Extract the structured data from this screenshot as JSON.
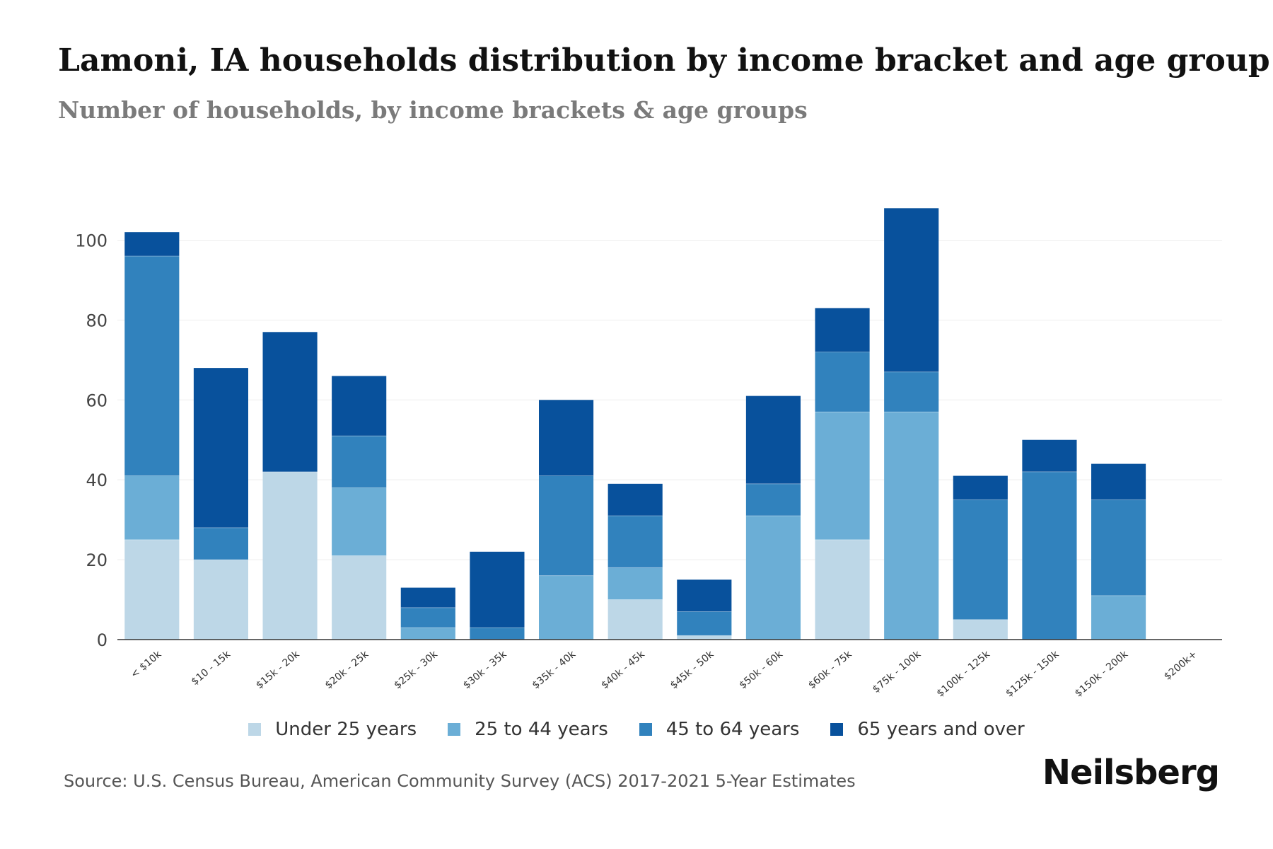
{
  "header": {
    "title": "Lamoni, IA households distribution by income bracket and age group",
    "subtitle": "Number of households, by income brackets & age groups"
  },
  "footer": {
    "source": "Source: U.S. Census Bureau, American Community Survey (ACS) 2017-2021 5-Year Estimates",
    "brand": "Neilsberg"
  },
  "chart_data": {
    "type": "bar",
    "stacked": true,
    "title": "Lamoni, IA households distribution by income bracket and age group",
    "subtitle": "Number of households, by income brackets & age groups",
    "xlabel": "",
    "ylabel": "",
    "ylim": [
      0,
      110
    ],
    "yticks": [
      0,
      20,
      40,
      60,
      80,
      100
    ],
    "grid": true,
    "legend_position": "bottom",
    "categories": [
      "< $10k",
      "$10 - 15k",
      "$15k - 20k",
      "$20k - 25k",
      "$25k - 30k",
      "$30k - 35k",
      "$35k - 40k",
      "$40k - 45k",
      "$45k - 50k",
      "$50k - 60k",
      "$60k - 75k",
      "$75k - 100k",
      "$100k - 125k",
      "$125k - 150k",
      "$150k - 200k",
      "$200k+"
    ],
    "series": [
      {
        "name": "Under 25 years",
        "color": "#bdd7e7",
        "values": [
          25,
          20,
          42,
          21,
          0,
          0,
          0,
          10,
          1,
          0,
          25,
          0,
          5,
          0,
          0,
          0
        ]
      },
      {
        "name": "25 to 44 years",
        "color": "#6baed6",
        "values": [
          16,
          0,
          0,
          17,
          3,
          0,
          16,
          8,
          0,
          31,
          32,
          57,
          0,
          0,
          11,
          0
        ]
      },
      {
        "name": "45 to 64 years",
        "color": "#3182bd",
        "values": [
          55,
          8,
          0,
          13,
          5,
          3,
          25,
          13,
          6,
          8,
          15,
          10,
          30,
          42,
          24,
          0
        ]
      },
      {
        "name": "65 years and over",
        "color": "#08519c",
        "values": [
          6,
          40,
          35,
          15,
          5,
          19,
          19,
          8,
          8,
          22,
          11,
          41,
          6,
          8,
          9,
          0
        ]
      }
    ]
  }
}
